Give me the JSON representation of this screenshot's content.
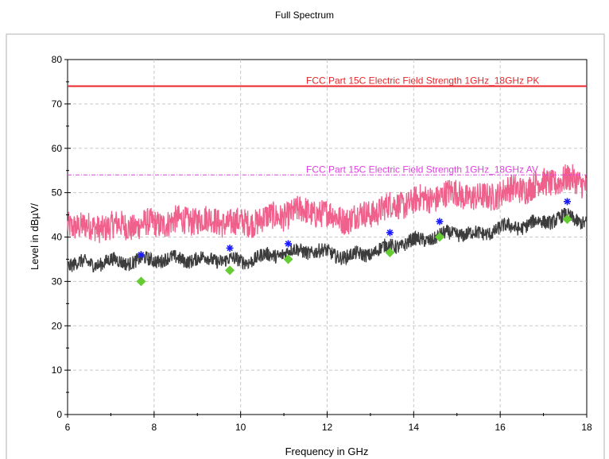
{
  "chart_data": {
    "type": "line",
    "title": "Full Spectrum",
    "xlabel": "Frequency in GHz",
    "ylabel": "Level in dBµV/",
    "xlim": [
      6,
      18
    ],
    "ylim": [
      0,
      80
    ],
    "x_ticks": [
      "6",
      "8",
      "10",
      "12",
      "14",
      "16",
      "18"
    ],
    "y_ticks": [
      "0",
      "10",
      "20",
      "30",
      "40",
      "50",
      "60",
      "70",
      "80"
    ],
    "grid": true,
    "limit_lines": [
      {
        "name": "FCC Part 15C Electric Field Strength 1GHz_18GHz PK",
        "value": 74,
        "color": "#e8262b"
      },
      {
        "name": "FCC Part 15C Electric Field Strength 1GHz_18GHz AV",
        "value": 54,
        "color": "#e040e0"
      }
    ],
    "series": [
      {
        "color": "#f0608c",
        "noise_band": 3.2,
        "x": [
          6,
          6.5,
          7,
          7.5,
          8,
          8.5,
          9,
          9.5,
          10,
          10.5,
          11,
          11.5,
          12,
          12.5,
          13,
          13.5,
          14,
          14.5,
          15,
          15.5,
          16,
          16.5,
          17,
          17.5,
          18
        ],
        "y": [
          43,
          42,
          42.5,
          42.5,
          43,
          43.5,
          44,
          43.5,
          43,
          44,
          45,
          46,
          45,
          44,
          45.5,
          47,
          48,
          49,
          50,
          48.5,
          50,
          51,
          52,
          53,
          52
        ]
      },
      {
        "color": "#3c3c3c",
        "noise_band": 1.6,
        "x": [
          6,
          6.5,
          7,
          7.5,
          8,
          8.5,
          9,
          9.5,
          10,
          10.5,
          11,
          11.5,
          12,
          12.5,
          13,
          13.5,
          14,
          14.5,
          15,
          15.5,
          16,
          16.5,
          17,
          17.5,
          18
        ],
        "y": [
          34,
          34,
          34.5,
          34.5,
          35,
          35,
          35,
          35,
          34.5,
          35.5,
          36.5,
          37,
          36.5,
          35.5,
          36.5,
          38,
          39,
          40,
          41,
          40.5,
          42,
          42.5,
          43.5,
          44.5,
          43.5
        ]
      }
    ],
    "markers": [
      {
        "shape": "star",
        "color": "#1a1aff",
        "points": [
          [
            7.7,
            36
          ],
          [
            9.75,
            37.5
          ],
          [
            11.1,
            38.5
          ],
          [
            13.45,
            41
          ],
          [
            14.6,
            43.5
          ],
          [
            17.55,
            48
          ]
        ]
      },
      {
        "shape": "diamond",
        "color": "#66cc33",
        "points": [
          [
            7.7,
            30
          ],
          [
            9.75,
            32.5
          ],
          [
            11.1,
            35
          ],
          [
            13.45,
            36.5
          ],
          [
            14.6,
            40
          ],
          [
            17.55,
            44
          ]
        ]
      }
    ]
  }
}
